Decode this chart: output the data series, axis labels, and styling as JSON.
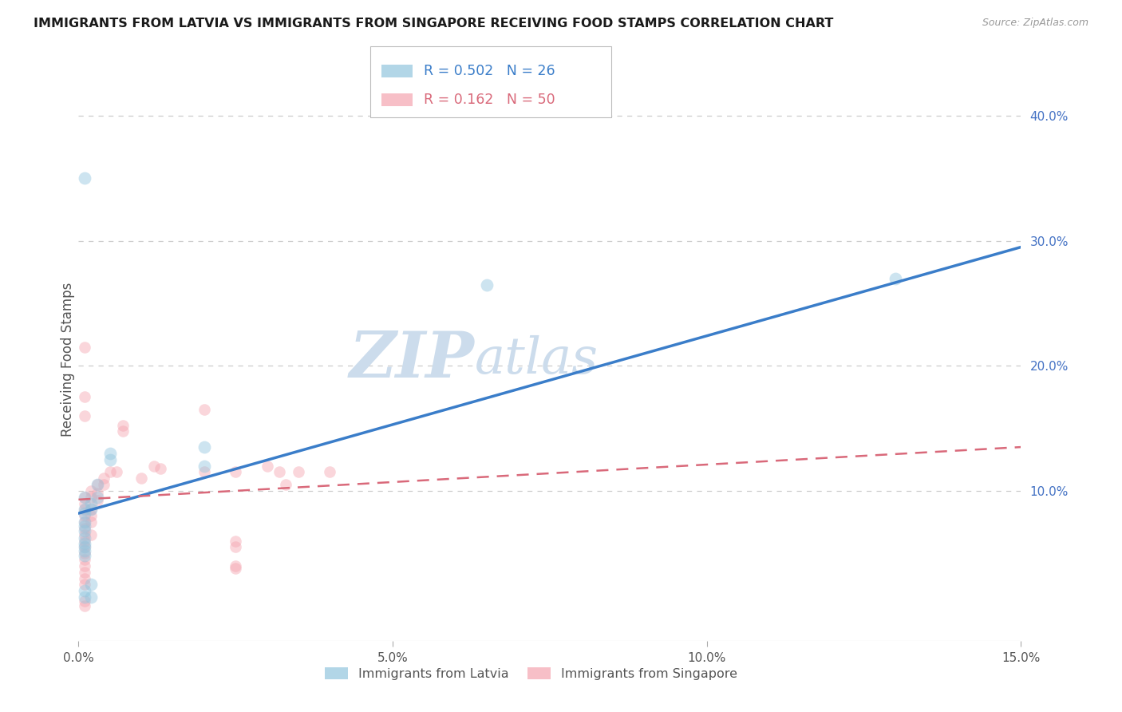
{
  "title": "IMMIGRANTS FROM LATVIA VS IMMIGRANTS FROM SINGAPORE RECEIVING FOOD STAMPS CORRELATION CHART",
  "source": "Source: ZipAtlas.com",
  "ylabel": "Receiving Food Stamps",
  "xlim": [
    0.0,
    0.15
  ],
  "ylim": [
    -0.02,
    0.43
  ],
  "xticks": [
    0.0,
    0.05,
    0.1,
    0.15
  ],
  "xtick_labels": [
    "0.0%",
    "5.0%",
    "10.0%",
    "15.0%"
  ],
  "yticks_right": [
    0.1,
    0.2,
    0.3,
    0.4
  ],
  "ytick_labels_right": [
    "10.0%",
    "20.0%",
    "30.0%",
    "40.0%"
  ],
  "watermark_line1": "ZIP",
  "watermark_line2": "atlas",
  "legend_entry1_R": "0.502",
  "legend_entry1_N": "26",
  "legend_entry2_R": "0.162",
  "legend_entry2_N": "50",
  "legend_label1": "Immigrants from Latvia",
  "legend_label2": "Immigrants from Singapore",
  "latvia_scatter": [
    [
      0.001,
      0.35
    ],
    [
      0.02,
      0.135
    ],
    [
      0.02,
      0.12
    ],
    [
      0.005,
      0.13
    ],
    [
      0.005,
      0.125
    ],
    [
      0.003,
      0.095
    ],
    [
      0.003,
      0.105
    ],
    [
      0.002,
      0.09
    ],
    [
      0.002,
      0.085
    ],
    [
      0.001,
      0.095
    ],
    [
      0.001,
      0.085
    ],
    [
      0.001,
      0.082
    ],
    [
      0.001,
      0.075
    ],
    [
      0.001,
      0.072
    ],
    [
      0.001,
      0.068
    ],
    [
      0.001,
      0.062
    ],
    [
      0.001,
      0.058
    ],
    [
      0.001,
      0.055
    ],
    [
      0.001,
      0.052
    ],
    [
      0.001,
      0.048
    ],
    [
      0.001,
      0.02
    ],
    [
      0.001,
      0.015
    ],
    [
      0.002,
      0.025
    ],
    [
      0.002,
      0.015
    ],
    [
      0.065,
      0.265
    ],
    [
      0.13,
      0.27
    ]
  ],
  "singapore_scatter": [
    [
      0.001,
      0.215
    ],
    [
      0.001,
      0.175
    ],
    [
      0.001,
      0.16
    ],
    [
      0.001,
      0.095
    ],
    [
      0.001,
      0.09
    ],
    [
      0.001,
      0.085
    ],
    [
      0.001,
      0.08
    ],
    [
      0.001,
      0.075
    ],
    [
      0.001,
      0.07
    ],
    [
      0.001,
      0.065
    ],
    [
      0.001,
      0.06
    ],
    [
      0.001,
      0.055
    ],
    [
      0.001,
      0.05
    ],
    [
      0.001,
      0.045
    ],
    [
      0.001,
      0.04
    ],
    [
      0.001,
      0.035
    ],
    [
      0.001,
      0.03
    ],
    [
      0.001,
      0.025
    ],
    [
      0.002,
      0.1
    ],
    [
      0.002,
      0.095
    ],
    [
      0.002,
      0.085
    ],
    [
      0.002,
      0.08
    ],
    [
      0.002,
      0.075
    ],
    [
      0.002,
      0.065
    ],
    [
      0.003,
      0.105
    ],
    [
      0.003,
      0.098
    ],
    [
      0.003,
      0.092
    ],
    [
      0.004,
      0.11
    ],
    [
      0.004,
      0.105
    ],
    [
      0.005,
      0.115
    ],
    [
      0.006,
      0.115
    ],
    [
      0.007,
      0.152
    ],
    [
      0.007,
      0.148
    ],
    [
      0.01,
      0.11
    ],
    [
      0.012,
      0.12
    ],
    [
      0.013,
      0.118
    ],
    [
      0.02,
      0.165
    ],
    [
      0.02,
      0.115
    ],
    [
      0.025,
      0.115
    ],
    [
      0.03,
      0.12
    ],
    [
      0.032,
      0.115
    ],
    [
      0.033,
      0.105
    ],
    [
      0.035,
      0.115
    ],
    [
      0.04,
      0.115
    ],
    [
      0.001,
      0.012
    ],
    [
      0.001,
      0.008
    ],
    [
      0.025,
      0.06
    ],
    [
      0.025,
      0.055
    ],
    [
      0.025,
      0.04
    ],
    [
      0.025,
      0.038
    ]
  ],
  "latvia_line_x": [
    0.0,
    0.15
  ],
  "latvia_line_y": [
    0.082,
    0.295
  ],
  "singapore_line_x": [
    0.0,
    0.15
  ],
  "singapore_line_y": [
    0.093,
    0.135
  ],
  "scatter_size_latvia": 130,
  "scatter_size_singapore": 110,
  "scatter_alpha": 0.45,
  "scatter_color_latvia": "#92c5de",
  "scatter_color_singapore": "#f4a5b0",
  "line_color_latvia": "#3a7dc9",
  "line_color_singapore": "#d9697a",
  "background_color": "#ffffff",
  "grid_color": "#cccccc",
  "title_color": "#1a1a1a",
  "right_tick_color": "#4472c4",
  "watermark_color": "#ccdcec"
}
